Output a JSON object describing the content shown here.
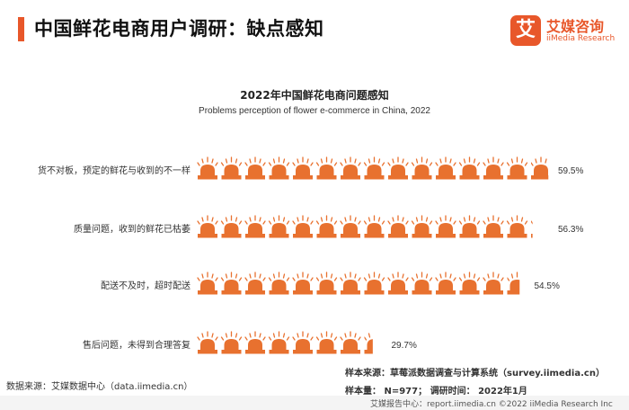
{
  "header": {
    "title": "中国鲜花电商用户调研：缺点感知",
    "logo_mark": "艾",
    "logo_cn": "艾媒咨询",
    "logo_en": "iiMedia Research"
  },
  "chart_data": {
    "type": "bar",
    "title": "2022年中国鲜花电商问题感知",
    "subtitle": "Problems perception of flower e-commerce in China, 2022",
    "categories": [
      "货不对板，预定的鲜花与收到的不一样",
      "质量问题，收到的鲜花已枯萎",
      "配送不及时，超时配送",
      "售后问题，未得到合理答复"
    ],
    "values": [
      59.5,
      56.3,
      54.5,
      29.7
    ],
    "value_labels": [
      "59.5%",
      "56.3%",
      "54.5%",
      "29.7%"
    ],
    "unit": "%",
    "icon": "siren-alarm-icon",
    "color": "#e8712f",
    "grid": false,
    "legend": "none"
  },
  "footer": {
    "source": "数据来源：艾媒数据中心（data.iimedia.cn）",
    "sample_source": "样本来源：草莓派数据调查与计算系统（survey.iimedia.cn）",
    "sample_size": "样本量： N=977； 调研时间： 2022年1月",
    "report": "艾媒报告中心：report.iimedia.cn     ©2022 iiMedia Research Inc"
  }
}
